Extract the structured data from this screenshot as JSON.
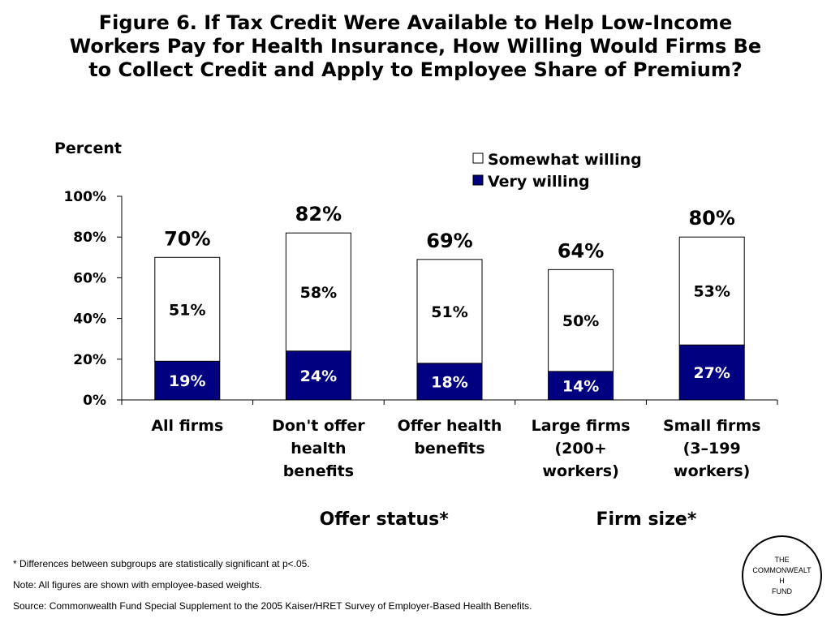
{
  "title_lines": [
    "Figure 6. If Tax Credit Were Available to Help Low-Income",
    "Workers Pay for Health Insurance, How Willing Would Firms Be",
    "to Collect Credit and Apply to Employee Share of Premium?"
  ],
  "chart_data": {
    "type": "bar",
    "stacked": true,
    "ylabel": "Percent",
    "ylim": [
      0,
      100
    ],
    "yticks": [
      "0%",
      "20%",
      "40%",
      "60%",
      "80%",
      "100%"
    ],
    "categories": [
      [
        "All firms"
      ],
      [
        "Don't offer",
        "health",
        "benefits"
      ],
      [
        "Offer health",
        "benefits"
      ],
      [
        "Large firms",
        "(200+",
        "workers)"
      ],
      [
        "Small firms",
        "(3–199",
        "workers)"
      ]
    ],
    "series": [
      {
        "name": "Very willing",
        "color": "#000080",
        "values": [
          19,
          24,
          18,
          14,
          27
        ],
        "labels": [
          "19%",
          "24%",
          "18%",
          "14%",
          "27%"
        ]
      },
      {
        "name": "Somewhat willing",
        "color": "#ffffff",
        "values": [
          51,
          58,
          51,
          50,
          53
        ],
        "labels": [
          "51%",
          "58%",
          "51%",
          "50%",
          "53%"
        ]
      }
    ],
    "totals": [
      "70%",
      "82%",
      "69%",
      "64%",
      "80%"
    ],
    "total_values": [
      70,
      82,
      69,
      64,
      80
    ],
    "group_labels": [
      {
        "label": "Offer status*",
        "spans": [
          1,
          2
        ]
      },
      {
        "label": "Firm size*",
        "spans": [
          3,
          4
        ]
      }
    ],
    "legend_position": "top-right",
    "grid": false
  },
  "footnotes": [
    "* Differences between subgroups are statistically significant at p<.05.",
    "Note: All figures are shown with employee-based weights.",
    "Source: Commonwealth Fund Special Supplement to the 2005 Kaiser/HRET Survey of Employer-Based Health Benefits."
  ],
  "logo_lines": [
    "THE",
    "COMMONWEALT",
    "H",
    "FUND"
  ]
}
